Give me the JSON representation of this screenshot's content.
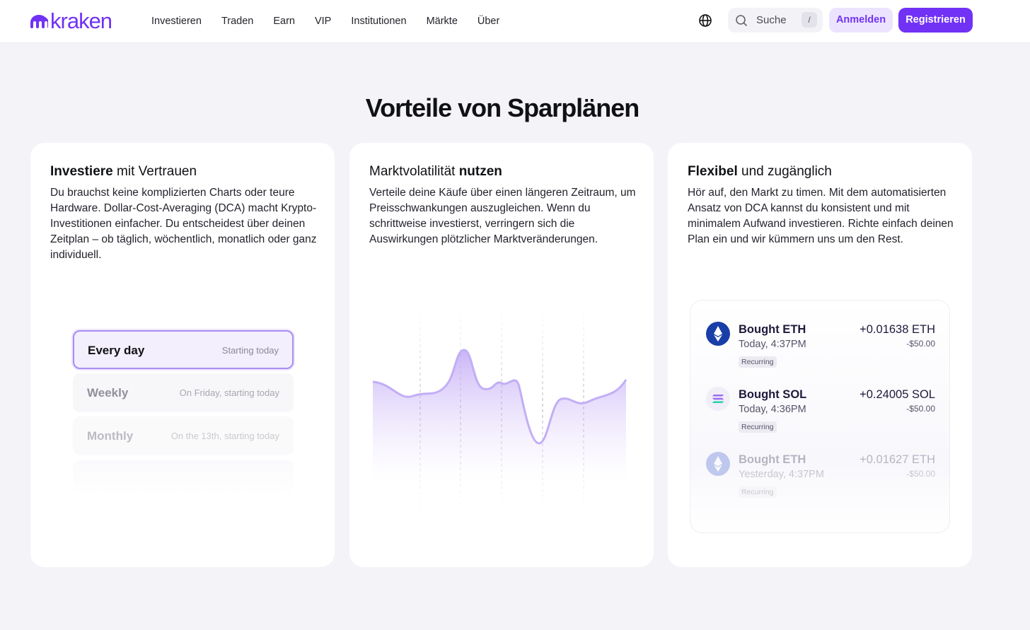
{
  "header": {
    "logo": "kraken",
    "nav": [
      "Investieren",
      "Traden",
      "Earn",
      "VIP",
      "Institutionen",
      "Märkte",
      "Über"
    ],
    "search": "Suche",
    "search_key": "/",
    "login": "Anmelden",
    "register": "Registrieren"
  },
  "title": "Vorteile von Sparplänen",
  "cards": [
    {
      "title": {
        "bold": "Investiere",
        "text": "mit Vertrauen"
      },
      "body": "Du brauchst keine komplizierten Charts oder teure Hardware. Dollar-Cost-Averaging (DCA) macht Krypto-Investitionen einfacher. Du entscheidest über deinen Zeitplan – ob täglich, wöchentlich, monatlich oder ganz individuell.",
      "options": [
        {
          "name": "Every day",
          "detail": "Starting today"
        },
        {
          "name": "Weekly",
          "detail": "On Friday, starting today"
        },
        {
          "name": "Monthly",
          "detail": "On the 13th, starting today"
        }
      ]
    },
    {
      "title": {
        "text": "Marktvolatilität",
        "bold": "nutzen"
      },
      "body": "Verteile deine Käufe über einen längeren Zeitraum, um Preisschwankungen auszugleichen. Wenn du schrittweise investierst, verringern sich die Auswirkungen plötzlicher Marktveränderungen."
    },
    {
      "title": {
        "bold": "Flexibel",
        "text": "und zugänglich"
      },
      "body": "Hör auf, den Markt zu timen. Mit dem automatisierten Ansatz von DCA kannst du konsistent und mit minimalem Aufwand investieren. Richte einfach deinen Plan ein und wir kümmern uns um den Rest.",
      "transactions": [
        {
          "title": "Bought ETH",
          "time": "Today, 4:37PM",
          "tag": "Recurring",
          "amount": "+0.01638 ETH",
          "cost": "-$50.00"
        },
        {
          "title": "Bought SOL",
          "time": "Today, 4:36PM",
          "tag": "Recurring",
          "amount": "+0.24005 SOL",
          "cost": "-$50.00"
        },
        {
          "title": "Bought ETH",
          "time": "Yesterday, 4:37PM",
          "tag": "Recurring",
          "amount": "+0.01627 ETH",
          "cost": "-$50.00"
        }
      ]
    }
  ]
}
